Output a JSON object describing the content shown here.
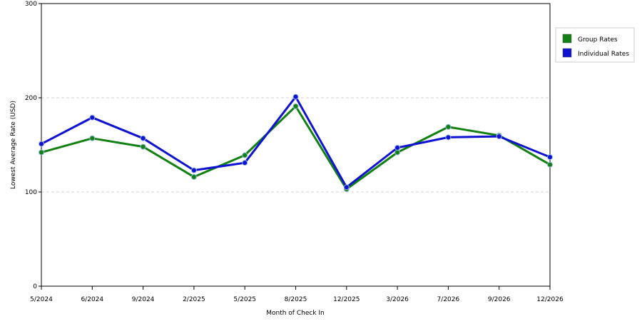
{
  "chart_data": {
    "type": "line",
    "title": "",
    "xlabel": "Month of Check In",
    "ylabel": "Lowest Average Rate (USD)",
    "categories": [
      "5/2024",
      "6/2024",
      "9/2024",
      "2/2025",
      "5/2025",
      "8/2025",
      "12/2025",
      "3/2026",
      "7/2026",
      "9/2026",
      "12/2026"
    ],
    "ylim": [
      0,
      300
    ],
    "yticks": [
      "0",
      "100",
      "200",
      "300"
    ],
    "grid": "horizontal dashed at 100 and 200",
    "legend_position": "right",
    "series": [
      {
        "name": "Group Rates",
        "color": "#138013",
        "values": [
          142,
          157,
          148,
          116,
          139,
          191,
          103,
          142,
          169,
          160,
          129
        ]
      },
      {
        "name": "Individual Rates",
        "color": "#0f12d1",
        "values": [
          151,
          179,
          157,
          123,
          131,
          201,
          105,
          147,
          158,
          159,
          137
        ]
      }
    ]
  }
}
